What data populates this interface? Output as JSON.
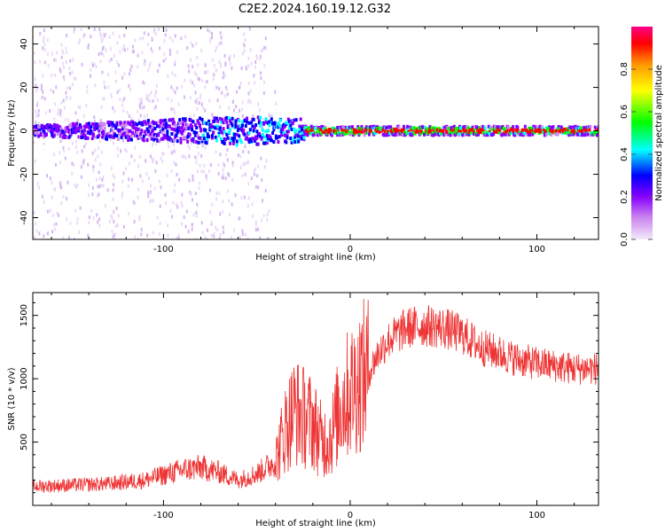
{
  "title": "C2E2.2024.160.19.12.G32",
  "chart_data": [
    {
      "type": "heatmap",
      "xlabel": "Height of straight line (km)",
      "ylabel": "Frequency (Hz)",
      "xlim": [
        -170,
        133
      ],
      "ylim": [
        -50,
        48
      ],
      "x_ticks": [
        -100,
        0,
        100
      ],
      "y_ticks": [
        -40,
        -20,
        0,
        20,
        40
      ],
      "colorbar": {
        "label": "Normalized spectral amplitude",
        "range": [
          0,
          1
        ],
        "ticks": [
          0.0,
          0.2,
          0.4,
          0.6,
          0.8
        ],
        "colors": [
          "#f2e9fb",
          "#cc88ee",
          "#8800ff",
          "#0000ff",
          "#00ffff",
          "#00ff00",
          "#ffff00",
          "#ff9900",
          "#ff0000",
          "#ff0088"
        ]
      },
      "bands": [
        {
          "x_from": -170,
          "x_to": -25,
          "frequency_center": 0,
          "half_width": 6,
          "amplitude": 0.25
        },
        {
          "x_from": -25,
          "x_to": 133,
          "frequency_center": 0,
          "half_width": 2,
          "amplitude": 0.7
        }
      ]
    },
    {
      "type": "line",
      "xlabel": "Height of straight line (km)",
      "ylabel": "SNR (10 * v/v)",
      "xlim": [
        -170,
        133
      ],
      "ylim": [
        0,
        1680
      ],
      "x_ticks": [
        -100,
        0,
        100
      ],
      "y_ticks": [
        500,
        1000,
        1500
      ],
      "color": "#ee3333",
      "series": [
        {
          "x": [
            -170,
            -150,
            -130,
            -110,
            -90,
            -80,
            -70,
            -60,
            -50,
            -40,
            -35,
            -30,
            -25,
            -20,
            -15,
            -10,
            -5,
            0,
            5,
            10,
            15,
            20,
            25,
            30,
            40,
            50,
            60,
            70,
            80,
            90,
            100,
            110,
            120,
            133
          ],
          "values": [
            150,
            160,
            170,
            200,
            280,
            300,
            260,
            200,
            250,
            350,
            600,
            750,
            700,
            650,
            500,
            550,
            800,
            900,
            1000,
            1050,
            1200,
            1300,
            1350,
            1400,
            1420,
            1400,
            1350,
            1250,
            1200,
            1150,
            1120,
            1100,
            1080,
            1080
          ]
        }
      ]
    }
  ]
}
